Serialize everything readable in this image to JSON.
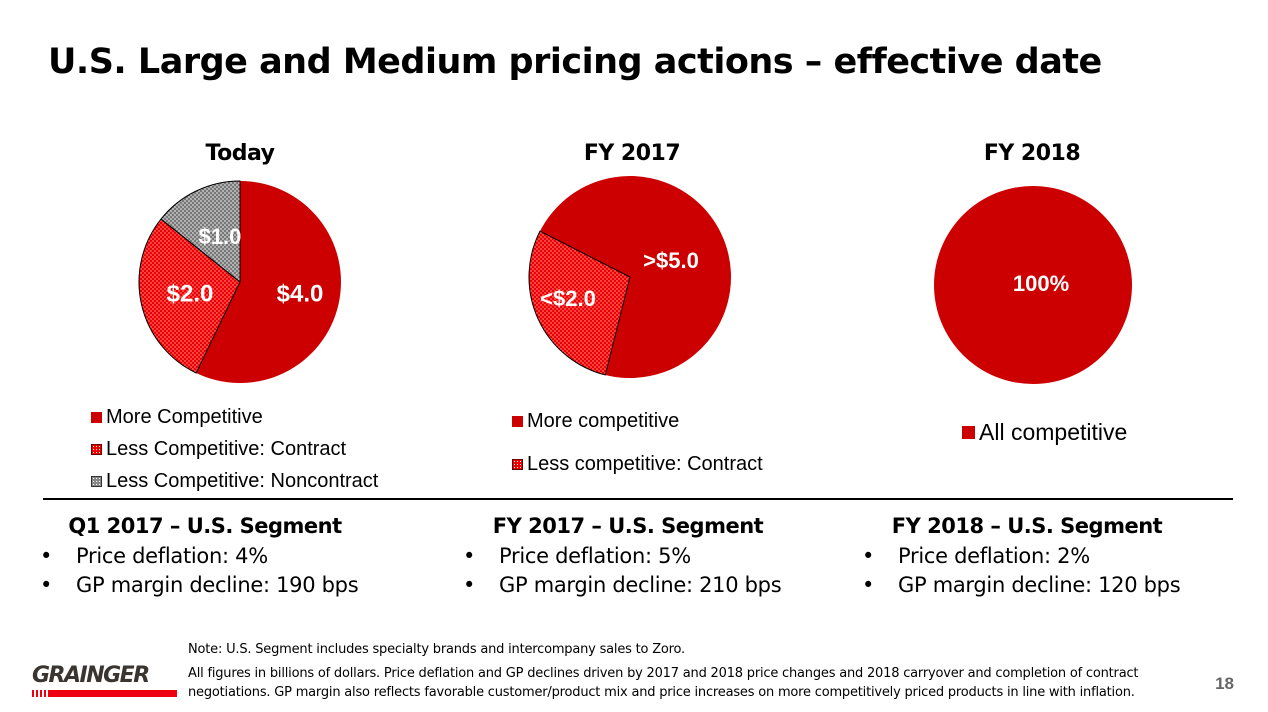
{
  "title": "U.S. Large and Medium pricing actions – effective date",
  "colors": {
    "red": "#cc0000",
    "red_pattern": "#ee0000",
    "grey_pattern": "#888888"
  },
  "chart_data": [
    {
      "type": "pie",
      "title": "Today",
      "slices": [
        {
          "name": "More Competitive",
          "value": 4.0,
          "label": "$4.0",
          "fill": "solid"
        },
        {
          "name": "Less Competitive: Contract",
          "value": 2.0,
          "label": "$2.0",
          "fill": "red-dots"
        },
        {
          "name": "Less Competitive: Noncontract",
          "value": 1.0,
          "label": "$1.0",
          "fill": "grey-dots"
        }
      ]
    },
    {
      "type": "pie",
      "title": "FY 2017",
      "slices": [
        {
          "name": "More competitive",
          "value": 5.0,
          "label": ">$5.0",
          "fill": "solid"
        },
        {
          "name": "Less competitive: Contract",
          "value": 2.0,
          "label": "<$2.0",
          "fill": "red-dots"
        }
      ]
    },
    {
      "type": "pie",
      "title": "FY 2018",
      "slices": [
        {
          "name": "All competitive",
          "value": 100,
          "label": "100%",
          "fill": "solid"
        }
      ]
    }
  ],
  "segments": [
    {
      "title": "Q1 2017 – U.S. Segment",
      "bullets": [
        "Price deflation: 4%",
        "GP margin decline: 190 bps"
      ]
    },
    {
      "title": "FY 2017 – U.S. Segment",
      "bullets": [
        "Price deflation: 5%",
        "GP margin decline: 210 bps"
      ]
    },
    {
      "title": "FY 2018 – U.S. Segment",
      "bullets": [
        "Price deflation: 2%",
        "GP margin decline: 120 bps"
      ]
    }
  ],
  "notes": {
    "line1": "Note: U.S. Segment includes specialty brands and intercompany sales to Zoro.",
    "line2": "All figures in billions of dollars. Price deflation and GP declines driven by 2017 and 2018 price changes and 2018 carryover and completion of contract",
    "line3": "negotiations.  GP margin also reflects favorable customer/product mix and price increases on more competitively priced products in line  with inflation."
  },
  "logo": "GRAINGER",
  "page_number": "18"
}
